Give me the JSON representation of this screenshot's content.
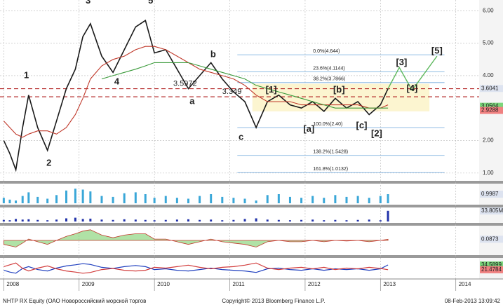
{
  "chart_data": {
    "type": "line",
    "x": [
      2008.0,
      2008.08,
      2008.16,
      2008.25,
      2008.33,
      2008.45,
      2008.58,
      2008.7,
      2008.83,
      2008.95,
      2009.05,
      2009.15,
      2009.3,
      2009.45,
      2009.6,
      2009.75,
      2009.88,
      2010.0,
      2010.15,
      2010.3,
      2010.45,
      2010.6,
      2010.75,
      2010.9,
      2011.05,
      2011.2,
      2011.35,
      2011.5,
      2011.65,
      2011.8,
      2011.95,
      2012.1,
      2012.25,
      2012.4,
      2012.55,
      2012.7,
      2012.85,
      2013.0,
      2013.1
    ],
    "xlim": [
      2007.95,
      2014.31
    ],
    "xticks": [
      2008,
      2009,
      2010,
      2011,
      2012,
      2013,
      2014
    ],
    "ylim": [
      0.76,
      6.33
    ],
    "yticks": [
      {
        "value": 1,
        "label": "1.00"
      },
      {
        "value": 2,
        "label": "2.00"
      },
      {
        "value": 4,
        "label": "4.00"
      },
      {
        "value": 5,
        "label": "5.00"
      },
      {
        "value": 6,
        "label": "6.00"
      }
    ],
    "grid": true,
    "log_scale": false,
    "series": [
      {
        "color": "#1a1a1a",
        "values": [
          2.0,
          1.6,
          1.1,
          2.4,
          3.4,
          2.4,
          1.7,
          2.6,
          3.6,
          4.2,
          5.2,
          5.6,
          4.6,
          4.1,
          4.8,
          5.5,
          5.7,
          4.7,
          4.8,
          4.2,
          3.6,
          4.0,
          4.4,
          3.9,
          3.5,
          3.2,
          2.4,
          3.2,
          3.4,
          3.1,
          3.0,
          3.2,
          2.9,
          3.3,
          3.0,
          3.2,
          2.8,
          3.1,
          3.6
        ]
      },
      {
        "color": "#c0392b",
        "values": [
          2.6,
          2.4,
          2.2,
          2.1,
          2.2,
          2.3,
          2.3,
          2.2,
          2.4,
          2.8,
          3.3,
          3.9,
          4.3,
          4.5,
          4.6,
          4.8,
          4.9,
          4.9,
          4.8,
          4.6,
          4.4,
          4.2,
          4.1,
          4.0,
          3.9,
          3.7,
          3.4,
          3.2,
          3.2,
          3.2,
          3.1,
          3.1,
          3.1,
          3.1,
          3.1,
          3.1,
          3.0,
          3.0,
          3.1
        ]
      },
      {
        "color": "#3a9a3a",
        "values": [
          null,
          null,
          null,
          null,
          null,
          null,
          null,
          null,
          null,
          null,
          null,
          null,
          3.9,
          4.0,
          4.1,
          4.2,
          4.3,
          4.4,
          4.4,
          4.4,
          4.4,
          4.3,
          4.2,
          4.1,
          4.0,
          3.9,
          3.7,
          3.6,
          3.5,
          3.4,
          3.3,
          3.2,
          3.1,
          3.0,
          3.0,
          3.0,
          3.0,
          3.0,
          3.0
        ]
      }
    ],
    "channel": {
      "x": [
        2011.3,
        2013.65
      ],
      "y": [
        2.9,
        3.75
      ],
      "color": "#fbf3c4"
    },
    "levels": [
      {
        "value": 3.5972,
        "label": "3.5972",
        "x": 2010.25
      },
      {
        "value": 3.349,
        "label": "3.349",
        "x": 2010.9
      }
    ],
    "fib_range": [
      2011.1,
      2013.85
    ],
    "fib": [
      {
        "value": 4.644,
        "label": "0.0%(4.644)"
      },
      {
        "value": 4.1144,
        "label": "23.6%(4.1144)"
      },
      {
        "value": 3.7866,
        "label": "38.2%(3.7866)"
      },
      {
        "value": 2.4,
        "label": "100.0%(2.40)"
      },
      {
        "value": 1.5428,
        "label": "138.2%(1.5428)"
      },
      {
        "value": 1.0132,
        "label": "161.8%(1.0132)"
      }
    ],
    "last_labels": [
      {
        "value": 3.6041,
        "label": "3.6041",
        "color": "#dde3f0"
      },
      {
        "value": 3.0564,
        "label": "3.0564",
        "color": "#7bd67b"
      },
      {
        "value": 2.9288,
        "label": "2.9288",
        "color": "#f08080"
      }
    ],
    "annotations": [
      {
        "text": "1",
        "x": 2008.3,
        "y": 4.0,
        "color": "#5cb85c"
      },
      {
        "text": "2",
        "x": 2008.6,
        "y": 1.3,
        "color": "#5cb85c"
      },
      {
        "text": "3",
        "x": 2009.12,
        "y": 6.3,
        "color": "#5cb85c"
      },
      {
        "text": "4",
        "x": 2009.5,
        "y": 3.8,
        "color": "#5cb85c"
      },
      {
        "text": "5",
        "x": 2009.95,
        "y": 6.3,
        "color": "#5cb85c"
      },
      {
        "text": "a",
        "x": 2010.5,
        "y": 3.2,
        "color": "#b22222"
      },
      {
        "text": "b",
        "x": 2010.78,
        "y": 4.65,
        "color": "#b22222"
      },
      {
        "text": "c",
        "x": 2011.15,
        "y": 2.1,
        "color": "#b22222"
      },
      {
        "text": "[1]",
        "x": 2011.55,
        "y": 3.55,
        "color": "#5cb85c"
      },
      {
        "text": "[a]",
        "x": 2012.05,
        "y": 2.35,
        "color": "#b22222"
      },
      {
        "text": "[b]",
        "x": 2012.45,
        "y": 3.55,
        "color": "#b22222"
      },
      {
        "text": "[c]",
        "x": 2012.75,
        "y": 2.45,
        "color": "#b22222"
      },
      {
        "text": "[2]",
        "x": 2012.95,
        "y": 2.2,
        "color": "#5cb85c"
      },
      {
        "text": "[3]",
        "x": 2013.28,
        "y": 4.4,
        "color": "#5cb85c"
      },
      {
        "text": "[4]",
        "x": 2013.42,
        "y": 3.6,
        "color": "#5cb85c"
      },
      {
        "text": "[5]",
        "x": 2013.75,
        "y": 4.75,
        "color": "#5cb85c"
      }
    ],
    "projection": {
      "x": [
        2013.1,
        2013.25,
        2013.42,
        2013.75
      ],
      "y": [
        3.6,
        4.25,
        3.55,
        4.6
      ],
      "color": "#5cb85c"
    },
    "panels": [
      {
        "type": "bar",
        "color": "#3aa7d8",
        "ylim": [
          0,
          2
        ],
        "values": [
          0.6,
          0.4,
          0.3,
          0.8,
          1.2,
          0.7,
          0.5,
          0.9,
          1.4,
          1.6,
          1.5,
          1.3,
          0.8,
          0.7,
          1.1,
          1.2,
          1.0,
          0.6,
          0.8,
          0.6,
          0.5,
          0.8,
          1.0,
          0.7,
          0.6,
          0.5,
          0.3,
          0.9,
          1.0,
          0.7,
          0.6,
          0.8,
          0.6,
          0.9,
          0.7,
          0.8,
          0.6,
          0.8,
          0.9987
        ],
        "last_label": "0.9987"
      },
      {
        "type": "bar",
        "color": "#2233aa",
        "ylim": [
          0,
          40
        ],
        "values": [
          5,
          4,
          8,
          6,
          7,
          5,
          4,
          6,
          10,
          12,
          8,
          9,
          6,
          5,
          7,
          6,
          5,
          4,
          5,
          6,
          7,
          5,
          6,
          4,
          5,
          8,
          10,
          6,
          5,
          4,
          5,
          6,
          4,
          5,
          4,
          5,
          6,
          4,
          33.805
        ],
        "last_label": "33.805M"
      },
      {
        "type": "area",
        "color": "#7bcf6a",
        "ylim": [
          -1,
          1
        ],
        "values": [
          -0.3,
          -0.4,
          -0.5,
          -0.2,
          0.1,
          -0.1,
          -0.3,
          0.0,
          0.3,
          0.5,
          0.7,
          0.8,
          0.4,
          0.2,
          0.4,
          0.5,
          0.5,
          0.1,
          0.1,
          -0.1,
          -0.3,
          -0.1,
          0.1,
          -0.1,
          -0.2,
          -0.3,
          -0.5,
          -0.1,
          0.0,
          -0.1,
          -0.1,
          0.0,
          -0.1,
          0.0,
          -0.05,
          0.0,
          -0.1,
          0.0,
          0.0873
        ],
        "last_label": "0.0873"
      },
      {
        "type": "lines",
        "ylim": [
          0,
          50
        ],
        "series": [
          {
            "color": "#1f3fbf",
            "values": [
              20,
              15,
              12,
              25,
              30,
              22,
              18,
              26,
              32,
              35,
              38,
              36,
              28,
              25,
              30,
              33,
              30,
              22,
              24,
              20,
              18,
              22,
              26,
              22,
              20,
              18,
              14,
              24,
              26,
              22,
              20,
              24,
              20,
              24,
              22,
              24,
              20,
              24,
              34.5899
            ],
            "last_label": "34.5899",
            "label_color": "#7bd67b"
          },
          {
            "color": "#d23c3c",
            "values": [
              30,
              35,
              40,
              25,
              18,
              26,
              32,
              24,
              18,
              15,
              12,
              14,
              22,
              25,
              20,
              18,
              20,
              28,
              26,
              30,
              34,
              28,
              24,
              28,
              30,
              34,
              40,
              26,
              22,
              26,
              28,
              24,
              28,
              22,
              26,
              24,
              28,
              25,
              21.4784
            ],
            "last_label": "21.4784",
            "label_color": "#f08080"
          }
        ]
      }
    ],
    "footer": {
      "left": "NHTP RX Equity (ОАО Новороссийский морской торгов",
      "center": "Copyright© 2013 Bloomberg Finance L.P.",
      "right": "08-Feb-2013 13:09:42"
    }
  }
}
